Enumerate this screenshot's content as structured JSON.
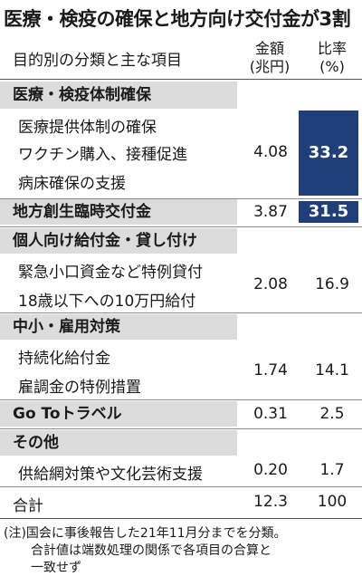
{
  "title": "医療・検疫の確保と地方向け交付金が3割",
  "header": {
    "category": "目的別の分類と主な項目",
    "amount_line1": "金額",
    "amount_line2": "(兆円)",
    "ratio_line1": "比率",
    "ratio_line2": "(%)"
  },
  "groups": [
    {
      "name": "医療・検疫体制確保",
      "items": [
        "医療提供体制の確保",
        "ワクチン購入、接種促進",
        "病床確保の支援"
      ],
      "amount": "4.08",
      "ratio": "33.2",
      "highlight": true
    },
    {
      "name": "地方創生臨時交付金",
      "amount": "3.87",
      "ratio": "31.5",
      "highlight": true
    },
    {
      "name": "個人向け給付金・貸し付け",
      "items": [
        "緊急小口資金など特例貸付",
        "18歳以下への10万円給付"
      ],
      "amount": "2.08",
      "ratio": "16.9"
    },
    {
      "name": "中小・雇用対策",
      "items": [
        "持続化給付金",
        "雇調金の特例措置"
      ],
      "amount": "1.74",
      "ratio": "14.1"
    },
    {
      "name": "Go Toトラベル",
      "amount": "0.31",
      "ratio": "2.5"
    },
    {
      "name": "その他",
      "items": [
        "供給網対策や文化芸術支援"
      ],
      "amount": "0.20",
      "ratio": "1.7"
    }
  ],
  "total": {
    "label": "合計",
    "amount": "12.3",
    "ratio": "100"
  },
  "note": {
    "line1": "(注)国会に事後報告した21年11月分までを分類。",
    "line2": "合計値は端数処理の関係で各項目の合算と",
    "line3": "一致せず"
  },
  "colors": {
    "highlight": "#1f3f7a",
    "band": "#dcdcdc"
  }
}
